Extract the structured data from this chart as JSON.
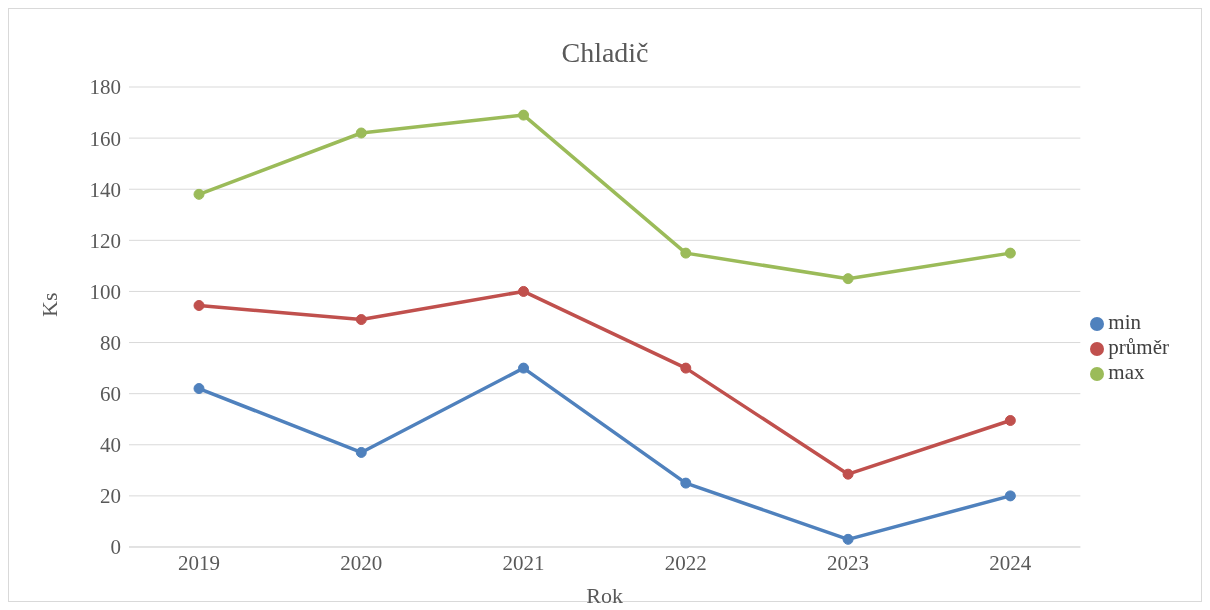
{
  "chart_data": {
    "type": "line",
    "title": "Chladič",
    "xlabel": "Rok",
    "ylabel": "Ks",
    "categories": [
      "2019",
      "2020",
      "2021",
      "2022",
      "2023",
      "2024"
    ],
    "series": [
      {
        "name": "min",
        "color": "#4f81bd",
        "values": [
          62,
          37,
          70,
          25,
          3,
          20
        ]
      },
      {
        "name": "průměr",
        "color": "#c0504d",
        "values": [
          94.5,
          89,
          100,
          70,
          28.5,
          49.5
        ]
      },
      {
        "name": "max",
        "color": "#9bbb59",
        "values": [
          138,
          162,
          169,
          115,
          105,
          115
        ]
      }
    ],
    "ylim": [
      0,
      180
    ],
    "yticks": [
      0,
      20,
      40,
      60,
      80,
      100,
      120,
      140,
      160,
      180
    ],
    "grid": "y",
    "legend": "right",
    "marker": "circle",
    "line_style": "solid"
  }
}
